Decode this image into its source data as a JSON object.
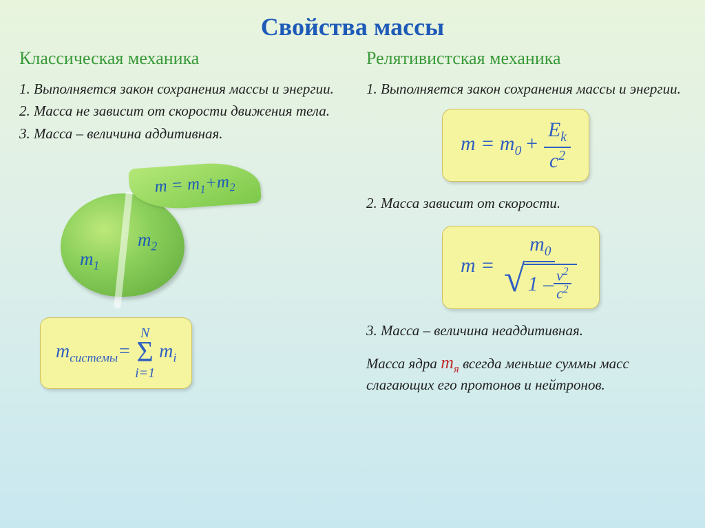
{
  "title": "Свойства массы",
  "left": {
    "heading": "Классическая механика",
    "p1": "1. Выполняется закон сохранения массы и энергии.",
    "p2": "2. Масса не зависит от скорости движения тела.",
    "p3": "3. Масса – величина аддитивная.",
    "leaf_formula_html": "m = m<span class='sub'>1</span>+m<span class='sub'>2</span>",
    "m1_label_html": "m<span class='sub'>1</span>",
    "m2_label_html": "m<span class='sub'>2</span>",
    "sum_left_html": "m<span class='sub'>системы</span>=",
    "sigma_top": "N",
    "sigma_sym": "Σ",
    "sigma_bot": "i=1",
    "sum_right_html": " m<span class='sub'>i</span>"
  },
  "right": {
    "heading": "Релятивистская механика",
    "p1": "1. Выполняется закон сохранения массы и энергии.",
    "f1_left_html": "m = m<span class='sub'>0 </span>+ ",
    "f1_num_html": "E<span class='sub'>k</span>",
    "f1_den_html": "c<sup style='font-size:0.65em'>2</sup>",
    "p2": "2. Масса  зависит от скорости.",
    "f2_left": "m = ",
    "f2_num_html": "m<span class='sub'>0</span>",
    "f2_one_minus": "1 – ",
    "f2_v2": "v",
    "f2_c2": "c",
    "p3": "3. Масса – величина неаддитивная.",
    "p4_a": "Масса  ядра ",
    "p4_nucleus_html": "m<span class='sub'>я</span>",
    "p4_b": " всегда меньше суммы масс слагающих его протонов и нейтронов."
  },
  "colors": {
    "title": "#1e5bb8",
    "subtitle": "#3a9a3a",
    "formula_bg": "#f5f5a0",
    "formula_text": "#3060c0",
    "nucleus_red": "#c03030"
  }
}
